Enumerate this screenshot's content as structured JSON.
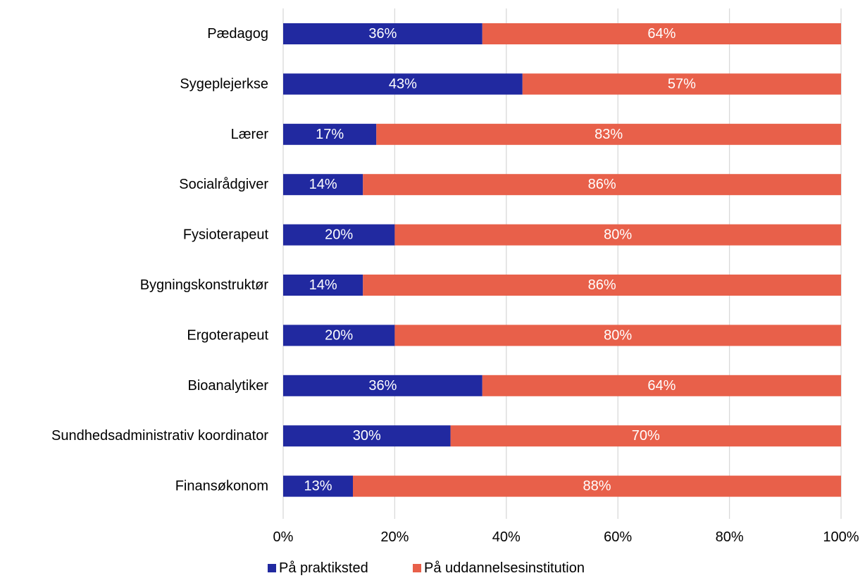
{
  "chart_data": {
    "type": "bar",
    "orientation": "horizontal",
    "stacked": true,
    "normalized_percent": true,
    "categories": [
      "Pædagog",
      "Sygeplejerkse",
      "Lærer",
      "Socialrådgiver",
      "Fysioterapeut",
      "Bygningskonstruktør",
      "Ergoterapeut",
      "Bioanalytiker",
      "Sundhedsadministrativ koordinator",
      "Finansøkonom"
    ],
    "series": [
      {
        "name": "På praktiksted",
        "color": "#2129a0",
        "values": [
          0.357,
          0.429,
          0.167,
          0.143,
          0.2,
          0.143,
          0.2,
          0.357,
          0.3,
          0.125
        ],
        "labels": [
          "36%",
          "43%",
          "17%",
          "14%",
          "20%",
          "14%",
          "20%",
          "36%",
          "30%",
          "13%"
        ]
      },
      {
        "name": "På uddannelsesinstitution",
        "color": "#e8604a",
        "values": [
          0.643,
          0.571,
          0.833,
          0.857,
          0.8,
          0.857,
          0.8,
          0.643,
          0.7,
          0.875
        ],
        "labels": [
          "64%",
          "57%",
          "83%",
          "86%",
          "80%",
          "86%",
          "80%",
          "64%",
          "70%",
          "88%"
        ]
      }
    ],
    "x_ticks": [
      "0%",
      "20%",
      "40%",
      "60%",
      "80%",
      "100%"
    ],
    "xlim": [
      0,
      1
    ],
    "grid": "vertical",
    "legend_position": "bottom",
    "title": "",
    "xlabel": "",
    "ylabel": ""
  }
}
